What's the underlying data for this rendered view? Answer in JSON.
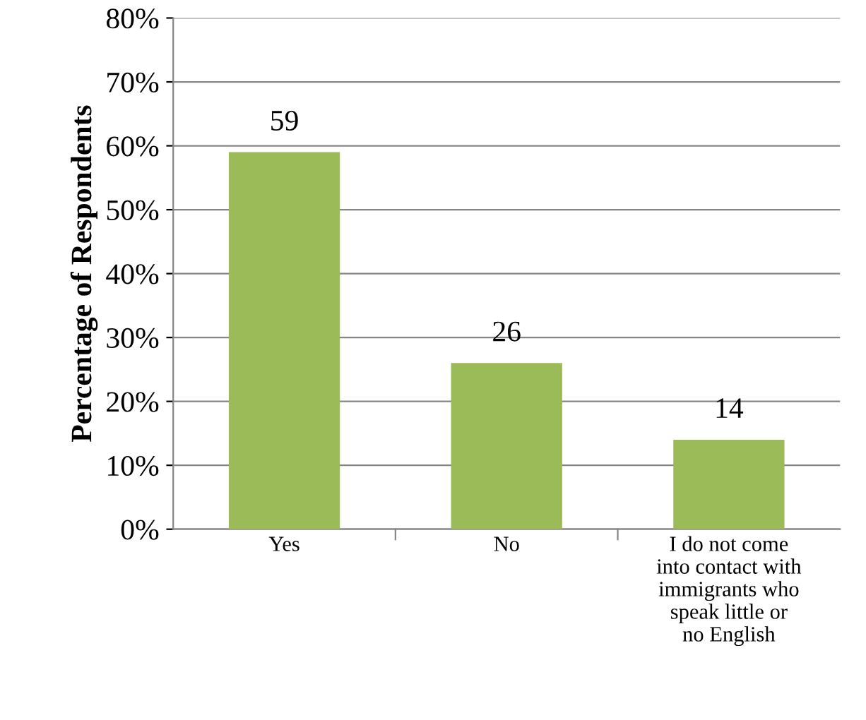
{
  "chart_data": {
    "type": "bar",
    "ylabel": "Percentage of Respondents",
    "categories": [
      "Yes",
      "No",
      "I do not come into contact with immigrants who speak little or no English"
    ],
    "values": [
      59,
      26,
      14
    ],
    "color": "#9bbb59",
    "ylim": [
      0,
      80
    ],
    "yticks": [
      {
        "value": 0,
        "label": "0%"
      },
      {
        "value": 10,
        "label": "10%"
      },
      {
        "value": 20,
        "label": "20%"
      },
      {
        "value": 30,
        "label": "30%"
      },
      {
        "value": 40,
        "label": "40%"
      },
      {
        "value": 50,
        "label": "50%"
      },
      {
        "value": 60,
        "label": "60%"
      },
      {
        "value": 70,
        "label": "70%"
      },
      {
        "value": 80,
        "label": "80%"
      }
    ],
    "grid": "y",
    "data_labels": true
  }
}
